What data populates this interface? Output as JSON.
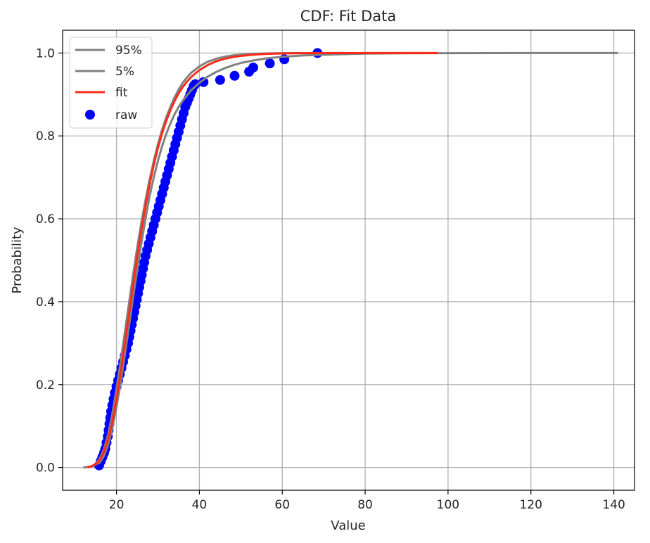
{
  "chart_data": {
    "type": "line",
    "title": "CDF: Fit Data",
    "xlabel": "Value",
    "ylabel": "Probability",
    "xlim": [
      7,
      145
    ],
    "ylim": [
      -0.055,
      1.055
    ],
    "xticks": [
      20,
      40,
      60,
      80,
      100,
      120,
      140
    ],
    "yticks": [
      0.0,
      0.2,
      0.4,
      0.6,
      0.8,
      1.0
    ],
    "ytick_labels": [
      "0.0",
      "0.2",
      "0.4",
      "0.6",
      "0.8",
      "1.0"
    ],
    "grid": true,
    "legend_position": "top-left",
    "colors": {
      "band": "#808080",
      "fit": "#ff2a1a",
      "raw": "#0000ff"
    },
    "series": [
      {
        "name": "95%",
        "kind": "line",
        "color": "#808080",
        "x": [
          12.5,
          14,
          15,
          16,
          17,
          18,
          19,
          20,
          21,
          22,
          23,
          24,
          25,
          26,
          27,
          28,
          29,
          30,
          31,
          32,
          33,
          34,
          35,
          36,
          37,
          38,
          40,
          42,
          44,
          46,
          48,
          50,
          52,
          55,
          58,
          62,
          66,
          70,
          75
        ],
        "y": [
          0.0,
          0.003,
          0.009,
          0.022,
          0.045,
          0.08,
          0.13,
          0.19,
          0.255,
          0.325,
          0.395,
          0.465,
          0.53,
          0.59,
          0.645,
          0.695,
          0.74,
          0.78,
          0.815,
          0.845,
          0.87,
          0.893,
          0.912,
          0.928,
          0.941,
          0.952,
          0.968,
          0.979,
          0.986,
          0.991,
          0.994,
          0.996,
          0.9975,
          0.9988,
          0.9994,
          0.9998,
          0.9999,
          1.0,
          1.0
        ]
      },
      {
        "name": "5%",
        "kind": "line",
        "color": "#808080",
        "x": [
          12,
          14,
          16,
          17,
          18,
          19,
          20,
          21,
          22,
          23,
          24,
          25,
          26,
          27,
          28,
          29,
          30,
          31,
          32,
          33,
          34,
          35,
          36,
          38,
          40,
          42,
          44,
          46,
          48,
          50,
          53,
          56,
          60,
          65,
          70,
          80,
          90,
          100,
          110,
          120,
          130,
          141
        ],
        "y": [
          0.0,
          0.002,
          0.012,
          0.028,
          0.055,
          0.095,
          0.145,
          0.205,
          0.27,
          0.34,
          0.41,
          0.475,
          0.54,
          0.6,
          0.655,
          0.7,
          0.74,
          0.775,
          0.805,
          0.83,
          0.852,
          0.87,
          0.885,
          0.91,
          0.928,
          0.943,
          0.954,
          0.963,
          0.97,
          0.976,
          0.982,
          0.987,
          0.991,
          0.994,
          0.996,
          0.9985,
          0.9993,
          0.9997,
          0.9999,
          1.0,
          1.0,
          1.0
        ]
      },
      {
        "name": "fit",
        "kind": "line",
        "color": "#ff2a1a",
        "x": [
          13,
          14,
          15,
          16,
          17,
          18,
          19,
          20,
          21,
          22,
          23,
          24,
          25,
          26,
          27,
          28,
          29,
          30,
          31,
          32,
          33,
          34,
          35,
          36,
          37,
          38,
          40,
          42,
          44,
          46,
          48,
          50,
          53,
          56,
          60,
          65,
          70,
          75,
          80,
          90,
          97.5
        ],
        "y": [
          0.0,
          0.003,
          0.008,
          0.018,
          0.038,
          0.068,
          0.11,
          0.165,
          0.228,
          0.298,
          0.37,
          0.44,
          0.508,
          0.572,
          0.63,
          0.683,
          0.73,
          0.771,
          0.806,
          0.836,
          0.862,
          0.884,
          0.903,
          0.918,
          0.931,
          0.942,
          0.959,
          0.971,
          0.98,
          0.986,
          0.99,
          0.993,
          0.996,
          0.998,
          0.999,
          0.9996,
          0.9998,
          0.9999,
          1.0,
          1.0,
          1.0
        ]
      },
      {
        "name": "raw",
        "kind": "scatter",
        "color": "#0000ff",
        "x": [
          15.8,
          16.2,
          16.6,
          17.0,
          17.3,
          17.6,
          17.9,
          18.1,
          18.3,
          18.5,
          18.7,
          19.0,
          19.3,
          19.6,
          20.0,
          20.4,
          20.8,
          21.2,
          21.6,
          22.0,
          22.4,
          22.8,
          23.1,
          23.4,
          23.7,
          24.0,
          24.3,
          24.6,
          24.9,
          25.2,
          25.5,
          25.8,
          26.1,
          26.4,
          26.7,
          27.0,
          27.4,
          27.8,
          28.2,
          28.6,
          29.0,
          29.4,
          29.8,
          30.2,
          30.6,
          31.0,
          31.4,
          31.8,
          32.2,
          32.6,
          33.0,
          33.4,
          33.8,
          34.2,
          34.6,
          35.0,
          35.4,
          35.8,
          36.2,
          36.6,
          37.0,
          37.4,
          37.8,
          38.2,
          38.6,
          39.0,
          41.0,
          45.0,
          48.5,
          52.0,
          53.0,
          57.0,
          60.5,
          68.5
        ],
        "y": [
          0.005,
          0.015,
          0.025,
          0.035,
          0.045,
          0.06,
          0.075,
          0.09,
          0.105,
          0.12,
          0.135,
          0.15,
          0.165,
          0.18,
          0.195,
          0.21,
          0.225,
          0.24,
          0.255,
          0.27,
          0.285,
          0.3,
          0.315,
          0.33,
          0.345,
          0.36,
          0.375,
          0.39,
          0.405,
          0.42,
          0.435,
          0.45,
          0.465,
          0.48,
          0.495,
          0.51,
          0.525,
          0.54,
          0.555,
          0.57,
          0.585,
          0.6,
          0.615,
          0.63,
          0.645,
          0.66,
          0.675,
          0.69,
          0.705,
          0.72,
          0.735,
          0.75,
          0.765,
          0.78,
          0.795,
          0.81,
          0.825,
          0.84,
          0.855,
          0.87,
          0.88,
          0.89,
          0.9,
          0.91,
          0.92,
          0.925,
          0.93,
          0.935,
          0.945,
          0.955,
          0.965,
          0.975,
          0.985,
          1.0
        ]
      }
    ]
  }
}
